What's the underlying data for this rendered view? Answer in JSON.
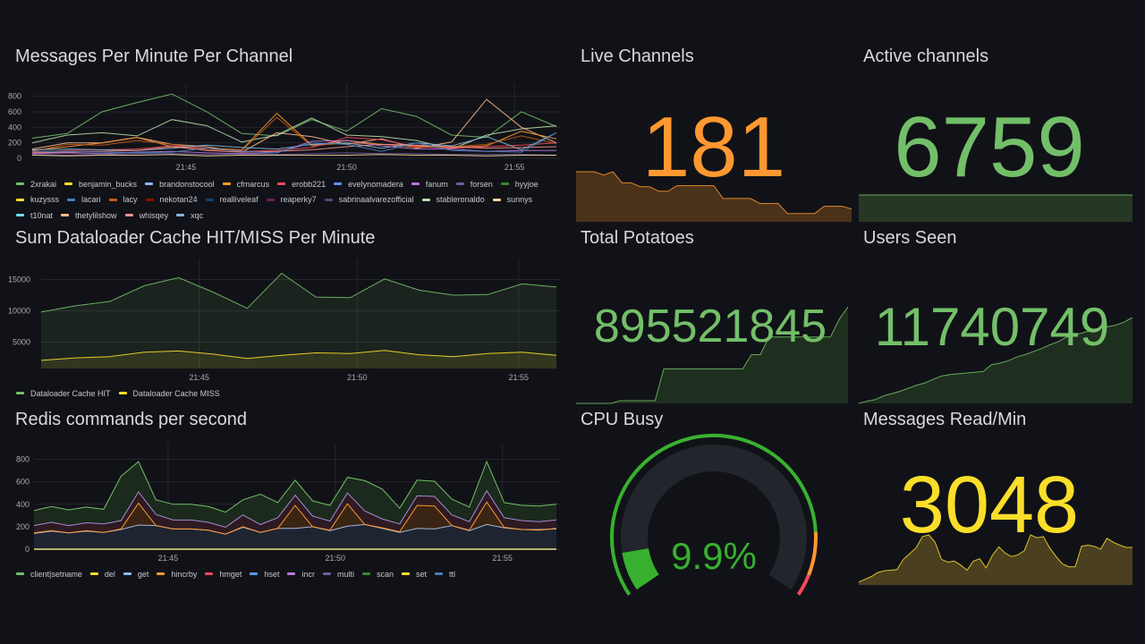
{
  "panels": {
    "messages_per_minute": {
      "title": "Messages Per Minute Per Channel",
      "legend": [
        {
          "label": "2xrakai",
          "color": "#73bf69"
        },
        {
          "label": "benjamin_bucks",
          "color": "#fade2a"
        },
        {
          "label": "brandonstocool",
          "color": "#8ab8ff"
        },
        {
          "label": "cfmarcus",
          "color": "#ff9830"
        },
        {
          "label": "erobb221",
          "color": "#f2495c"
        },
        {
          "label": "evelynomadera",
          "color": "#5794f2"
        },
        {
          "label": "fanum",
          "color": "#b877d9"
        },
        {
          "label": "forsen",
          "color": "#705da0"
        },
        {
          "label": "hyyjoe",
          "color": "#37872d"
        },
        {
          "label": "kuzysss",
          "color": "#fade2a"
        },
        {
          "label": "lacari",
          "color": "#447ebc"
        },
        {
          "label": "lacy",
          "color": "#c15c17"
        },
        {
          "label": "nekotan24",
          "color": "#890f02"
        },
        {
          "label": "realliveleaf",
          "color": "#0a437c"
        },
        {
          "label": "reaperky7",
          "color": "#6d1f62"
        },
        {
          "label": "sabrinaalvarezofficial",
          "color": "#584477"
        },
        {
          "label": "stableronaldo",
          "color": "#b7dbab"
        },
        {
          "label": "sunnys",
          "color": "#f4d598"
        },
        {
          "label": "t10nat",
          "color": "#70dbed"
        },
        {
          "label": "thetylilshow",
          "color": "#f9ba8f"
        },
        {
          "label": "whisqey",
          "color": "#f29191"
        },
        {
          "label": "xqc",
          "color": "#82b5d8"
        }
      ]
    },
    "dataloader": {
      "title": "Sum Dataloader Cache HIT/MISS Per Minute",
      "legend": [
        {
          "label": "Dataloader Cache HIT",
          "color": "#73bf69"
        },
        {
          "label": "Dataloader Cache MISS",
          "color": "#fade2a"
        }
      ]
    },
    "redis": {
      "title": "Redis commands per second",
      "legend": [
        {
          "label": "client|setname",
          "color": "#73bf69"
        },
        {
          "label": "del",
          "color": "#fade2a"
        },
        {
          "label": "get",
          "color": "#8ab8ff"
        },
        {
          "label": "hincrby",
          "color": "#ff9830"
        },
        {
          "label": "hmget",
          "color": "#f2495c"
        },
        {
          "label": "hset",
          "color": "#5794f2"
        },
        {
          "label": "incr",
          "color": "#b877d9"
        },
        {
          "label": "multi",
          "color": "#705da0"
        },
        {
          "label": "scan",
          "color": "#37872d"
        },
        {
          "label": "set",
          "color": "#fade2a"
        },
        {
          "label": "ttl",
          "color": "#447ebc"
        }
      ]
    },
    "live_channels": {
      "title": "Live Channels",
      "value": "181",
      "color": "#ff9830",
      "spark": [
        9,
        9,
        9,
        8.4,
        9,
        7,
        7,
        6.3,
        6.3,
        5.5,
        5.5,
        6.5,
        6.5,
        6.5,
        6.5,
        6.5,
        4.2,
        4.2,
        4.2,
        4.2,
        3.3,
        3.3,
        3.3,
        1.5,
        1.5,
        1.5,
        1.5,
        2.8,
        2.8,
        2.8,
        2.3
      ]
    },
    "active_channels": {
      "title": "Active channels",
      "value": "6759",
      "color": "#73bf69",
      "spark": [
        10,
        10,
        10,
        10,
        10,
        10,
        10,
        10
      ]
    },
    "total_potatoes": {
      "title": "Total Potatoes",
      "value": "895521845",
      "color": "#73bf69",
      "spark": [
        0,
        0,
        0,
        0,
        0,
        0.3,
        0.3,
        0.3,
        0.3,
        0.3,
        3.9,
        3.9,
        3.9,
        3.9,
        3.9,
        3.9,
        3.9,
        3.9,
        3.9,
        3.9,
        5.5,
        5.5,
        7.5,
        7.5,
        7.5,
        7.5,
        7.5,
        7.5,
        7.5,
        7.5,
        9.5,
        10.9
      ]
    },
    "users_seen": {
      "title": "Users Seen",
      "value": "11740749",
      "color": "#73bf69",
      "spark": [
        0,
        0.3,
        0.5,
        1,
        1.3,
        1.6,
        2,
        2.4,
        2.7,
        3.2,
        3.6,
        3.8,
        3.9,
        4,
        4.1,
        4.2,
        5.1,
        5.3,
        5.6,
        6.1,
        6.4,
        6.8,
        7.2,
        7.7,
        8.1,
        8.7,
        9,
        9.3,
        9.6,
        9.9,
        10.1,
        10.3,
        10.7,
        11.3
      ]
    },
    "cpu_busy": {
      "title": "CPU Busy",
      "value": "9.9%",
      "percent": 9.9,
      "thresholds": [
        {
          "from": 0,
          "color": "#37b12f"
        },
        {
          "from": 85,
          "color": "#ff9830"
        },
        {
          "from": 95,
          "color": "#f2495c"
        }
      ]
    },
    "messages_read": {
      "title": "Messages Read/Min",
      "value": "3048",
      "color": "#fade2a",
      "spark": [
        0.5,
        1,
        1.5,
        2.2,
        2.5,
        2.6,
        2.7,
        4.5,
        5.5,
        6.5,
        8.5,
        8.8,
        7.5,
        4.5,
        4,
        4.2,
        3.5,
        2.6,
        4.2,
        4.6,
        3,
        5.2,
        6.7,
        5.6,
        5,
        5.3,
        6,
        8.8,
        8.3,
        8.5,
        6.5,
        5,
        3.7,
        3.2,
        3.2,
        6.8,
        7,
        6.8,
        6.3,
        8.2,
        7.5,
        7,
        6.6,
        6.6
      ]
    }
  },
  "chart_data": [
    {
      "type": "line",
      "title": "Messages Per Minute Per Channel",
      "x": [
        "21:41",
        "21:42",
        "21:43",
        "21:44",
        "21:45",
        "21:46",
        "21:47",
        "21:48",
        "21:49",
        "21:50",
        "21:51",
        "21:52",
        "21:53",
        "21:54",
        "21:55",
        "21:56"
      ],
      "xticks": [
        "21:45",
        "21:50",
        "21:55"
      ],
      "yticks": [
        "0",
        "200",
        "400",
        "600",
        "800"
      ],
      "ylim": [
        0,
        900
      ],
      "series": [
        {
          "name": "2xrakai",
          "values": [
            260,
            320,
            600,
            720,
            830,
            600,
            320,
            290,
            500,
            350,
            640,
            540,
            300,
            270,
            600,
            410
          ]
        },
        {
          "name": "stableronaldo",
          "values": [
            200,
            300,
            330,
            290,
            500,
            420,
            210,
            300,
            520,
            300,
            280,
            230,
            120,
            300,
            380,
            420
          ]
        },
        {
          "name": "thetylilshow",
          "values": [
            120,
            200,
            200,
            270,
            180,
            150,
            80,
            330,
            280,
            180,
            250,
            130,
            210,
            760,
            400,
            200
          ]
        },
        {
          "name": "cfmarcus",
          "values": [
            100,
            150,
            200,
            270,
            150,
            130,
            110,
            580,
            170,
            230,
            180,
            160,
            140,
            160,
            350,
            250
          ]
        },
        {
          "name": "lacy",
          "values": [
            90,
            180,
            170,
            230,
            180,
            110,
            100,
            530,
            160,
            200,
            180,
            140,
            150,
            180,
            290,
            190
          ]
        },
        {
          "name": "erobb221",
          "values": [
            80,
            100,
            110,
            120,
            160,
            130,
            90,
            100,
            140,
            270,
            240,
            150,
            130,
            150,
            170,
            200
          ]
        },
        {
          "name": "xqc",
          "values": [
            110,
            120,
            110,
            100,
            130,
            170,
            140,
            120,
            180,
            200,
            130,
            200,
            160,
            280,
            110,
            330
          ]
        },
        {
          "name": "whisqey",
          "values": [
            70,
            80,
            90,
            100,
            150,
            100,
            80,
            90,
            110,
            150,
            180,
            170,
            150,
            130,
            140,
            150
          ]
        },
        {
          "name": "fanum",
          "values": [
            60,
            70,
            60,
            80,
            90,
            70,
            60,
            70,
            220,
            230,
            160,
            120,
            120,
            90,
            100,
            100
          ]
        },
        {
          "name": "lacari",
          "values": [
            90,
            90,
            80,
            70,
            80,
            130,
            90,
            70,
            200,
            180,
            90,
            200,
            100,
            90,
            80,
            330
          ]
        },
        {
          "name": "forsen",
          "values": [
            50,
            40,
            50,
            60,
            60,
            50,
            50,
            50,
            60,
            70,
            60,
            60,
            50,
            50,
            50,
            40
          ]
        },
        {
          "name": "sunnys",
          "values": [
            40,
            30,
            40,
            40,
            50,
            30,
            40,
            40,
            40,
            40,
            50,
            40,
            40,
            30,
            40,
            40
          ]
        }
      ]
    },
    {
      "type": "area",
      "title": "Sum Dataloader Cache HIT/MISS Per Minute",
      "x": [
        "21:41",
        "21:42",
        "21:43",
        "21:44",
        "21:45",
        "21:46",
        "21:47",
        "21:48",
        "21:49",
        "21:50",
        "21:51",
        "21:52",
        "21:53",
        "21:54",
        "21:55",
        "21:56"
      ],
      "xticks": [
        "21:45",
        "21:50",
        "21:55"
      ],
      "yticks": [
        "5000",
        "10000",
        "15000"
      ],
      "ylim": [
        800,
        17500
      ],
      "series": [
        {
          "name": "Dataloader Cache HIT",
          "values": [
            9800,
            10800,
            11500,
            14000,
            15300,
            13000,
            10400,
            16000,
            12200,
            12100,
            15100,
            13300,
            12500,
            12600,
            14300,
            13800
          ]
        },
        {
          "name": "Dataloader Cache MISS",
          "values": [
            2100,
            2500,
            2700,
            3400,
            3600,
            3100,
            2400,
            2900,
            3300,
            3200,
            3700,
            3000,
            2700,
            3200,
            3400,
            2900
          ]
        }
      ]
    },
    {
      "type": "area",
      "title": "Redis commands per second",
      "x": [
        "21:41",
        "21:41:30",
        "21:42",
        "21:42:30",
        "21:43",
        "21:43:30",
        "21:44",
        "21:44:30",
        "21:45",
        "21:45:30",
        "21:46",
        "21:46:30",
        "21:47",
        "21:47:30",
        "21:48",
        "21:48:30",
        "21:49",
        "21:49:30",
        "21:50",
        "21:50:30",
        "21:51",
        "21:51:30",
        "21:52",
        "21:52:30",
        "21:53",
        "21:53:30",
        "21:54",
        "21:54:30",
        "21:55",
        "21:55:30",
        "21:56"
      ],
      "xticks": [
        "21:45",
        "21:50",
        "21:55"
      ],
      "yticks": [
        "0",
        "200",
        "400",
        "600",
        "800"
      ],
      "ylim": [
        0,
        900
      ],
      "series": [
        {
          "name": "get",
          "values": [
            140,
            160,
            145,
            160,
            150,
            175,
            215,
            210,
            180,
            180,
            170,
            135,
            195,
            150,
            185,
            185,
            200,
            165,
            205,
            220,
            185,
            150,
            185,
            180,
            210,
            165,
            220,
            190,
            175,
            175,
            180
          ]
        },
        {
          "name": "hincrby",
          "values": [
            145,
            165,
            145,
            165,
            150,
            180,
            410,
            210,
            180,
            180,
            170,
            135,
            200,
            150,
            185,
            390,
            200,
            170,
            405,
            220,
            190,
            155,
            390,
            385,
            210,
            170,
            420,
            195,
            175,
            170,
            185
          ]
        },
        {
          "name": "multi",
          "values": [
            210,
            240,
            210,
            235,
            225,
            255,
            510,
            310,
            260,
            260,
            240,
            195,
            305,
            220,
            280,
            480,
            295,
            250,
            500,
            340,
            270,
            225,
            475,
            470,
            305,
            245,
            520,
            280,
            255,
            245,
            260
          ]
        },
        {
          "name": "client|setname",
          "values": [
            345,
            380,
            350,
            375,
            355,
            650,
            780,
            440,
            400,
            400,
            380,
            330,
            440,
            490,
            415,
            615,
            430,
            390,
            640,
            610,
            535,
            365,
            615,
            605,
            445,
            375,
            780,
            415,
            390,
            385,
            400
          ]
        }
      ]
    }
  ]
}
